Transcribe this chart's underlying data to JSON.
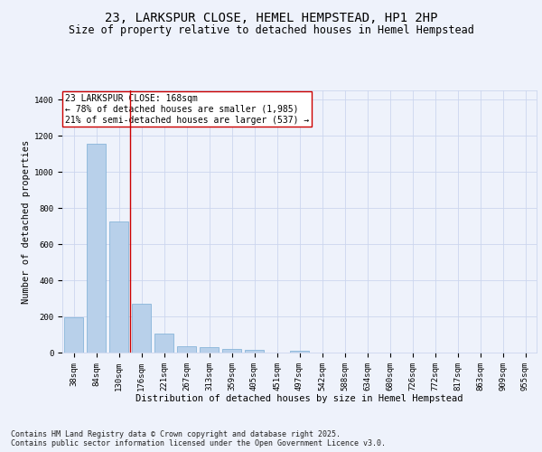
{
  "title_line1": "23, LARKSPUR CLOSE, HEMEL HEMPSTEAD, HP1 2HP",
  "title_line2": "Size of property relative to detached houses in Hemel Hempstead",
  "xlabel": "Distribution of detached houses by size in Hemel Hempstead",
  "ylabel": "Number of detached properties",
  "categories": [
    "38sqm",
    "84sqm",
    "130sqm",
    "176sqm",
    "221sqm",
    "267sqm",
    "313sqm",
    "359sqm",
    "405sqm",
    "451sqm",
    "497sqm",
    "542sqm",
    "588sqm",
    "634sqm",
    "680sqm",
    "726sqm",
    "772sqm",
    "817sqm",
    "863sqm",
    "909sqm",
    "955sqm"
  ],
  "values": [
    193,
    1155,
    725,
    268,
    107,
    35,
    28,
    22,
    13,
    0,
    9,
    0,
    0,
    0,
    0,
    0,
    0,
    0,
    0,
    0,
    0
  ],
  "bar_color": "#b8d0ea",
  "bar_edge_color": "#7aadd4",
  "vline_color": "#cc0000",
  "vline_pos": 2.5,
  "annotation_text": "23 LARKSPUR CLOSE: 168sqm\n← 78% of detached houses are smaller (1,985)\n21% of semi-detached houses are larger (537) →",
  "ylim": [
    0,
    1450
  ],
  "yticks": [
    0,
    200,
    400,
    600,
    800,
    1000,
    1200,
    1400
  ],
  "footer_text": "Contains HM Land Registry data © Crown copyright and database right 2025.\nContains public sector information licensed under the Open Government Licence v3.0.",
  "background_color": "#eef2fb",
  "grid_color": "#ccd6ee",
  "title_fontsize": 10,
  "subtitle_fontsize": 8.5,
  "axis_label_fontsize": 7.5,
  "tick_fontsize": 6.5,
  "annotation_fontsize": 7,
  "footer_fontsize": 6
}
